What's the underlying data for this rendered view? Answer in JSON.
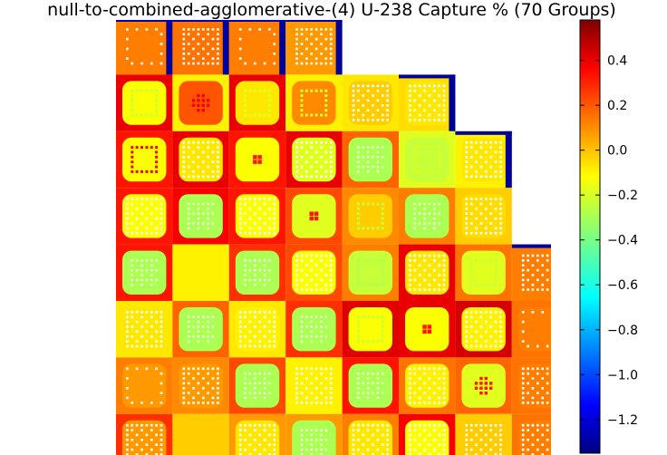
{
  "chart_data": {
    "type": "heatmap",
    "title": "null-to-combined-agglomerative-(4) U-238 Capture % (70 Groups)",
    "colormap": "jet",
    "colorbar": {
      "range": [
        -1.35,
        0.58
      ],
      "ticks": [
        {
          "value": 0.4,
          "label": "0.4"
        },
        {
          "value": 0.2,
          "label": "0.2"
        },
        {
          "value": 0.0,
          "label": "0.0"
        },
        {
          "value": -0.2,
          "label": "−0.2"
        },
        {
          "value": -0.4,
          "label": "−0.4"
        },
        {
          "value": -0.6,
          "label": "−0.6"
        },
        {
          "value": -0.8,
          "label": "−0.8"
        },
        {
          "value": -1.0,
          "label": "−1.0"
        },
        {
          "value": -1.2,
          "label": "−1.2"
        }
      ]
    },
    "assemblies": [
      {
        "row": 0,
        "col": 0,
        "value": 0.1,
        "pattern": "edge",
        "dot": 0.1,
        "boundary": -1.3
      },
      {
        "row": 0,
        "col": 1,
        "value": 0.12,
        "pattern": "grid",
        "dot": -0.05,
        "boundary": -1.3
      },
      {
        "row": 0,
        "col": 2,
        "value": 0.1,
        "pattern": "edge",
        "dot": -0.1,
        "boundary": -1.3
      },
      {
        "row": 0,
        "col": 3,
        "value": 0.05,
        "pattern": "grid",
        "dot": -0.1,
        "boundary": -1.3
      },
      {
        "row": 1,
        "col": 0,
        "value": 0.38,
        "inner": -0.15,
        "pattern": "ring",
        "dot": -0.25
      },
      {
        "row": 1,
        "col": 1,
        "value": -0.12,
        "inner": 0.18,
        "pattern": "cross",
        "dot": 0.35
      },
      {
        "row": 1,
        "col": 2,
        "value": 0.38,
        "inner": -0.1,
        "pattern": "ring",
        "dot": -0.2
      },
      {
        "row": 1,
        "col": 3,
        "value": -0.12,
        "inner": 0.08,
        "pattern": "ring",
        "dot": -0.25
      },
      {
        "row": 1,
        "col": 4,
        "value": -0.1,
        "inner": -0.05,
        "pattern": "grid",
        "dot": -0.2
      },
      {
        "row": 1,
        "col": 5,
        "value": -0.08,
        "inner": -0.1,
        "pattern": "grid",
        "dot": -0.2,
        "boundary": -1.3
      },
      {
        "row": 2,
        "col": 0,
        "value": 0.3,
        "inner": -0.15,
        "pattern": "ring",
        "dot": 0.35
      },
      {
        "row": 2,
        "col": 1,
        "value": 0.38,
        "inner": -0.1,
        "pattern": "grid",
        "dot": -0.2
      },
      {
        "row": 2,
        "col": 2,
        "value": 0.3,
        "inner": -0.15,
        "pattern": "center4",
        "dot": 0.3
      },
      {
        "row": 2,
        "col": 3,
        "value": 0.38,
        "inner": -0.2,
        "pattern": "grid",
        "dot": -0.25
      },
      {
        "row": 2,
        "col": 4,
        "value": 0.15,
        "inner": -0.3,
        "pattern": "mesh",
        "dot": 0.2
      },
      {
        "row": 2,
        "col": 5,
        "value": -0.2,
        "inner": -0.25,
        "pattern": "ring",
        "dot": -0.2
      },
      {
        "row": 2,
        "col": 6,
        "value": -0.12,
        "inner": -0.1,
        "pattern": "grid",
        "dot": -0.2,
        "boundary": -1.3
      },
      {
        "row": 3,
        "col": 0,
        "value": 0.3,
        "inner": -0.15,
        "pattern": "grid",
        "dot": -0.25
      },
      {
        "row": 3,
        "col": 1,
        "value": 0.35,
        "inner": -0.3,
        "pattern": "mesh",
        "dot": -0.1
      },
      {
        "row": 3,
        "col": 2,
        "value": 0.3,
        "inner": -0.15,
        "pattern": "grid",
        "dot": -0.2
      },
      {
        "row": 3,
        "col": 3,
        "value": 0.2,
        "inner": -0.2,
        "pattern": "center4",
        "dot": 0.3
      },
      {
        "row": 3,
        "col": 4,
        "value": 0.08,
        "inner": -0.05,
        "pattern": "ring",
        "dot": -0.25
      },
      {
        "row": 3,
        "col": 5,
        "value": 0.1,
        "inner": -0.3,
        "pattern": "mesh",
        "dot": -0.2
      },
      {
        "row": 3,
        "col": 6,
        "value": -0.05,
        "inner": -0.08,
        "pattern": "grid",
        "dot": -0.2
      },
      {
        "row": 4,
        "col": 0,
        "value": 0.3,
        "inner": -0.3,
        "pattern": "mesh",
        "dot": -0.1
      },
      {
        "row": 4,
        "col": 1,
        "value": -0.12,
        "inner": -0.12,
        "pattern": "none",
        "dot": -0.2
      },
      {
        "row": 4,
        "col": 2,
        "value": 0.25,
        "inner": -0.3,
        "pattern": "mesh",
        "dot": -0.15
      },
      {
        "row": 4,
        "col": 3,
        "value": 0.2,
        "inner": -0.15,
        "pattern": "grid",
        "dot": -0.25
      },
      {
        "row": 4,
        "col": 4,
        "value": 0.1,
        "inner": -0.25,
        "pattern": "ring",
        "dot": -0.3
      },
      {
        "row": 4,
        "col": 5,
        "value": 0.38,
        "inner": -0.1,
        "pattern": "grid",
        "dot": -0.2
      },
      {
        "row": 4,
        "col": 6,
        "value": 0.12,
        "inner": -0.2,
        "pattern": "ring",
        "dot": -0.25
      },
      {
        "row": 4,
        "col": 7,
        "value": 0.1,
        "inner": 0.1,
        "pattern": "grid",
        "dot": -0.1,
        "boundary": -1.3
      },
      {
        "row": 5,
        "col": 0,
        "value": -0.1,
        "inner": -0.1,
        "pattern": "grid",
        "dot": -0.2
      },
      {
        "row": 5,
        "col": 1,
        "value": 0.15,
        "inner": -0.3,
        "pattern": "mesh",
        "dot": -0.1
      },
      {
        "row": 5,
        "col": 2,
        "value": -0.1,
        "inner": -0.12,
        "pattern": "grid",
        "dot": -0.2
      },
      {
        "row": 5,
        "col": 3,
        "value": 0.25,
        "inner": -0.3,
        "pattern": "mesh",
        "dot": -0.15
      },
      {
        "row": 5,
        "col": 4,
        "value": 0.4,
        "inner": -0.15,
        "pattern": "ring",
        "dot": -0.25
      },
      {
        "row": 5,
        "col": 5,
        "value": 0.38,
        "inner": -0.15,
        "pattern": "center4",
        "dot": 0.3
      },
      {
        "row": 5,
        "col": 6,
        "value": 0.42,
        "inner": -0.12,
        "pattern": "grid",
        "dot": -0.2
      },
      {
        "row": 5,
        "col": 7,
        "value": 0.12,
        "inner": 0.1,
        "pattern": "edge",
        "dot": -0.1
      },
      {
        "row": 6,
        "col": 0,
        "value": 0.1,
        "inner": 0.05,
        "pattern": "edge",
        "dot": -0.1
      },
      {
        "row": 6,
        "col": 1,
        "value": 0.08,
        "inner": 0.05,
        "pattern": "grid",
        "dot": -0.15
      },
      {
        "row": 6,
        "col": 2,
        "value": 0.2,
        "inner": -0.3,
        "pattern": "mesh",
        "dot": -0.1
      },
      {
        "row": 6,
        "col": 3,
        "value": -0.12,
        "inner": -0.12,
        "pattern": "grid",
        "dot": -0.2
      },
      {
        "row": 6,
        "col": 4,
        "value": 0.3,
        "inner": -0.3,
        "pattern": "mesh",
        "dot": -0.15
      },
      {
        "row": 6,
        "col": 5,
        "value": 0.12,
        "inner": -0.12,
        "pattern": "grid",
        "dot": -0.2
      },
      {
        "row": 6,
        "col": 6,
        "value": 0.15,
        "inner": -0.2,
        "pattern": "cross",
        "dot": 0.3
      },
      {
        "row": 6,
        "col": 7,
        "value": 0.12,
        "inner": 0.1,
        "pattern": "grid",
        "dot": -0.1
      },
      {
        "row": 7,
        "col": 0,
        "value": 0.25,
        "inner": 0.05,
        "pattern": "grid",
        "dot": -0.1
      },
      {
        "row": 7,
        "col": 1,
        "value": -0.05,
        "inner": -0.05,
        "pattern": "none",
        "dot": -0.1
      },
      {
        "row": 7,
        "col": 2,
        "value": 0.05,
        "inner": -0.1,
        "pattern": "grid",
        "dot": -0.2
      },
      {
        "row": 7,
        "col": 3,
        "value": 0.05,
        "inner": -0.3,
        "pattern": "mesh",
        "dot": -0.15
      },
      {
        "row": 7,
        "col": 4,
        "value": 0.1,
        "inner": -0.1,
        "pattern": "grid",
        "dot": -0.2
      },
      {
        "row": 7,
        "col": 5,
        "value": 0.35,
        "inner": -0.15,
        "pattern": "grid",
        "dot": -0.2
      },
      {
        "row": 7,
        "col": 6,
        "value": -0.05,
        "inner": -0.05,
        "pattern": "grid",
        "dot": -0.15
      },
      {
        "row": 7,
        "col": 7,
        "value": 0.12,
        "inner": 0.1,
        "pattern": "grid",
        "dot": -0.1
      }
    ]
  }
}
